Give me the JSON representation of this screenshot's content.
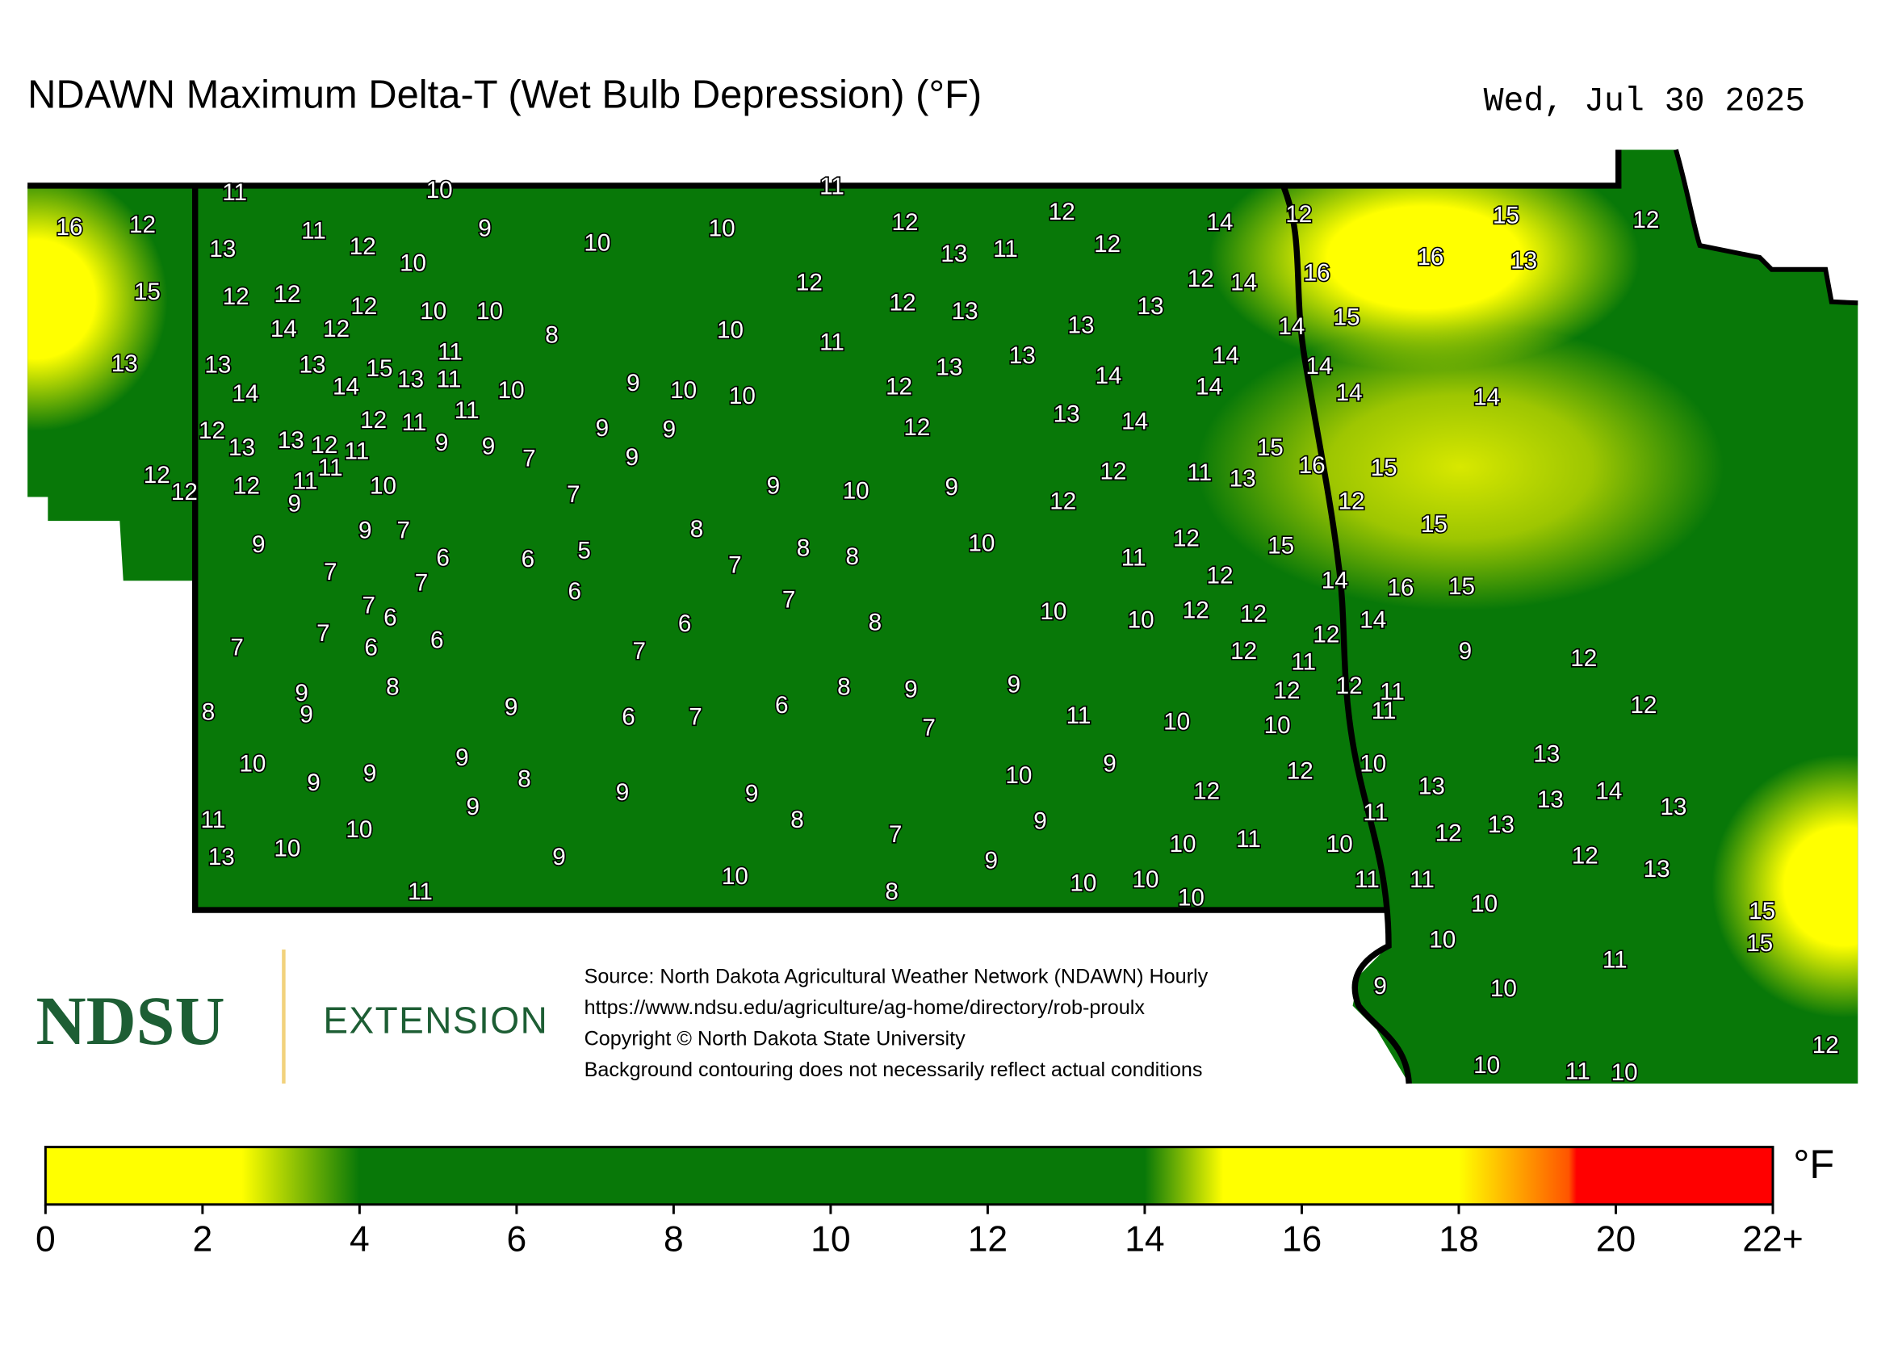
{
  "title": "NDAWN Maximum Delta-T (Wet Bulb Depression) (°F)",
  "date": "Wed, Jul 30 2025",
  "logo": {
    "name": "NDSU",
    "unit": "EXTENSION"
  },
  "source_lines": [
    "Source: North Dakota Agricultural Weather Network (NDAWN) Hourly",
    "https://www.ndsu.edu/agriculture/ag-home/directory/rob-proulx",
    "Copyright © North Dakota State University",
    "Background contouring does not necessarily reflect actual conditions"
  ],
  "stations": [
    11,
    10,
    11,
    16,
    12,
    13,
    11,
    12,
    10,
    9,
    10,
    10,
    12,
    13,
    11,
    12,
    12,
    14,
    12,
    15,
    12,
    15,
    12,
    12,
    12,
    10,
    10,
    14,
    12,
    8,
    10,
    12,
    12,
    13,
    11,
    13,
    13,
    12,
    14,
    16,
    16,
    13,
    14,
    15,
    13,
    13,
    13,
    11,
    15,
    13,
    11,
    14,
    14,
    10,
    9,
    10,
    10,
    12,
    13,
    13,
    14,
    14,
    14,
    14,
    14,
    14,
    12,
    11,
    11,
    12,
    13,
    13,
    12,
    11,
    11,
    9,
    9,
    7,
    9,
    9,
    9,
    12,
    13,
    14,
    15,
    16,
    15,
    12,
    12,
    12,
    11,
    9,
    10,
    7,
    9,
    10,
    9,
    12,
    12,
    11,
    13,
    12,
    15,
    9,
    9,
    7,
    8,
    8,
    8,
    10,
    6,
    6,
    5,
    7,
    7,
    7,
    6,
    11,
    12,
    15,
    12,
    14,
    16,
    15,
    7,
    7,
    6,
    7,
    6,
    6,
    7,
    6,
    7,
    8,
    10,
    10,
    12,
    12,
    12,
    14,
    12,
    11,
    9,
    12,
    8,
    9,
    9,
    8,
    9,
    6,
    7,
    6,
    8,
    9,
    7,
    9,
    11,
    10,
    10,
    12,
    12,
    11,
    11,
    12,
    10,
    9,
    9,
    9,
    8,
    9,
    9,
    9,
    8,
    10,
    9,
    12,
    12,
    10,
    13,
    13,
    13,
    14,
    13,
    11,
    10,
    7,
    9,
    11,
    12,
    13,
    13,
    10,
    9,
    10,
    9,
    10,
    11,
    10,
    12,
    13,
    11,
    8,
    10,
    10,
    10,
    11,
    11,
    10,
    15,
    10,
    15,
    11,
    9,
    10,
    12,
    10,
    11,
    10
  ],
  "colorbar": {
    "unit": "°F",
    "lim": [
      0,
      22
    ],
    "ticks": [
      0,
      2,
      4,
      6,
      8,
      10,
      12,
      14,
      16,
      18,
      20,
      {
        "value": 22,
        "label": "22+"
      }
    ],
    "stops": [
      {
        "value": 0,
        "color": "#ffff00"
      },
      {
        "value": 2.5,
        "color": "#ffff00"
      },
      {
        "value": 4,
        "color": "#087808"
      },
      {
        "value": 14,
        "color": "#087808"
      },
      {
        "value": 15,
        "color": "#ffff00"
      },
      {
        "value": 18,
        "color": "#ffff00"
      },
      {
        "value": 19.4,
        "color": "#ff5500"
      },
      {
        "value": 19.5,
        "color": "#ff0000"
      },
      {
        "value": 22,
        "color": "#ff0000"
      }
    ]
  }
}
